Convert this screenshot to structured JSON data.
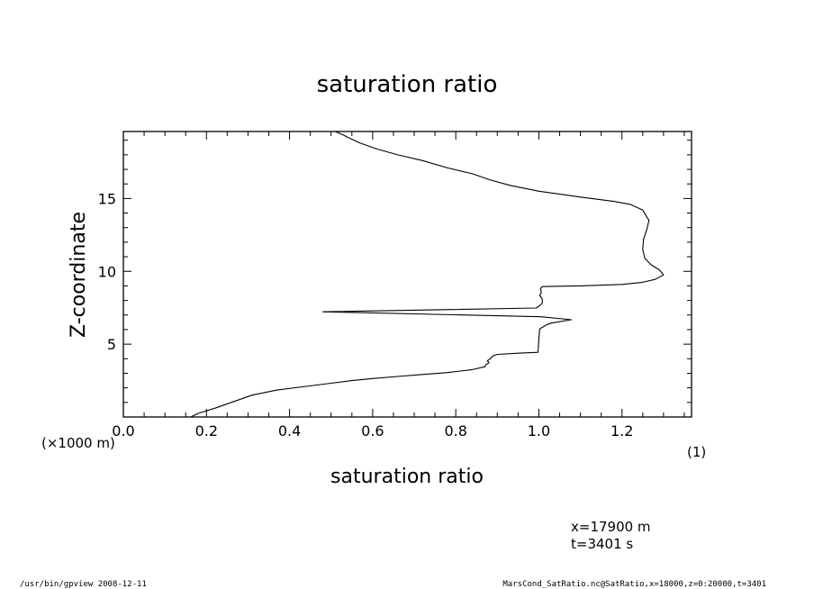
{
  "chart_data": {
    "type": "line",
    "title": "saturation ratio",
    "xlabel": "saturation ratio",
    "ylabel": "Z-coordinate",
    "x_unit_label": "(1)",
    "y_unit_label": "(×1000 m)",
    "xlim": [
      0.0,
      1.3674
    ],
    "ylim": [
      0.0,
      19.6
    ],
    "x_ticks": [
      0.0,
      0.2,
      0.4,
      0.6,
      0.8,
      1.0,
      1.2
    ],
    "x_tick_labels": [
      "0.0",
      "0.2",
      "0.4",
      "0.6",
      "0.8",
      "1.0",
      "1.2"
    ],
    "y_ticks": [
      5,
      10,
      15
    ],
    "y_tick_labels": [
      "5",
      "10",
      "15"
    ],
    "grid": false,
    "series": [
      {
        "x": [
          0.162,
          0.18,
          0.22,
          0.26,
          0.31,
          0.37,
          0.44,
          0.5,
          0.55,
          0.6,
          0.66,
          0.72,
          0.78,
          0.84,
          0.87,
          0.873,
          0.88,
          0.876,
          0.884,
          0.888,
          0.9,
          0.95,
          0.998,
          1.0,
          1.002,
          1.01,
          1.02,
          1.03,
          1.078,
          1.005,
          0.48,
          0.993,
          1.0,
          1.008,
          1.008,
          1.002,
          1.006,
          1.004,
          1.008,
          1.1,
          1.2,
          1.25,
          1.28,
          1.3,
          1.29,
          1.27,
          1.255,
          1.25,
          1.252,
          1.26,
          1.265,
          1.25,
          1.22,
          1.18,
          1.1,
          1.0,
          0.93,
          0.88,
          0.84,
          0.78,
          0.72,
          0.66,
          0.61,
          0.57,
          0.54,
          0.53,
          0.51
        ],
        "y": [
          0.0,
          0.25,
          0.6,
          1.0,
          1.5,
          1.85,
          2.1,
          2.32,
          2.5,
          2.64,
          2.78,
          2.92,
          3.05,
          3.25,
          3.45,
          3.6,
          3.73,
          3.86,
          4.02,
          4.18,
          4.3,
          4.38,
          4.44,
          5.4,
          6.05,
          6.18,
          6.35,
          6.45,
          6.68,
          6.88,
          7.22,
          7.48,
          7.6,
          7.8,
          8.1,
          8.35,
          8.55,
          8.82,
          8.95,
          9.0,
          9.1,
          9.25,
          9.45,
          9.75,
          10.1,
          10.45,
          10.9,
          11.5,
          12.2,
          12.9,
          13.5,
          14.2,
          14.6,
          14.8,
          15.1,
          15.5,
          15.9,
          16.3,
          16.7,
          17.1,
          17.6,
          18.0,
          18.4,
          18.8,
          19.2,
          19.35,
          19.6
        ]
      }
    ]
  },
  "annotations": {
    "position_x": "x=17900  m",
    "time": "t=3401  s"
  },
  "footer": {
    "left": "/usr/bin/gpview   2008-12-11",
    "right": "MarsCond_SatRatio.nc@SatRatio,x=18000,z=0:20000,t=3401"
  }
}
